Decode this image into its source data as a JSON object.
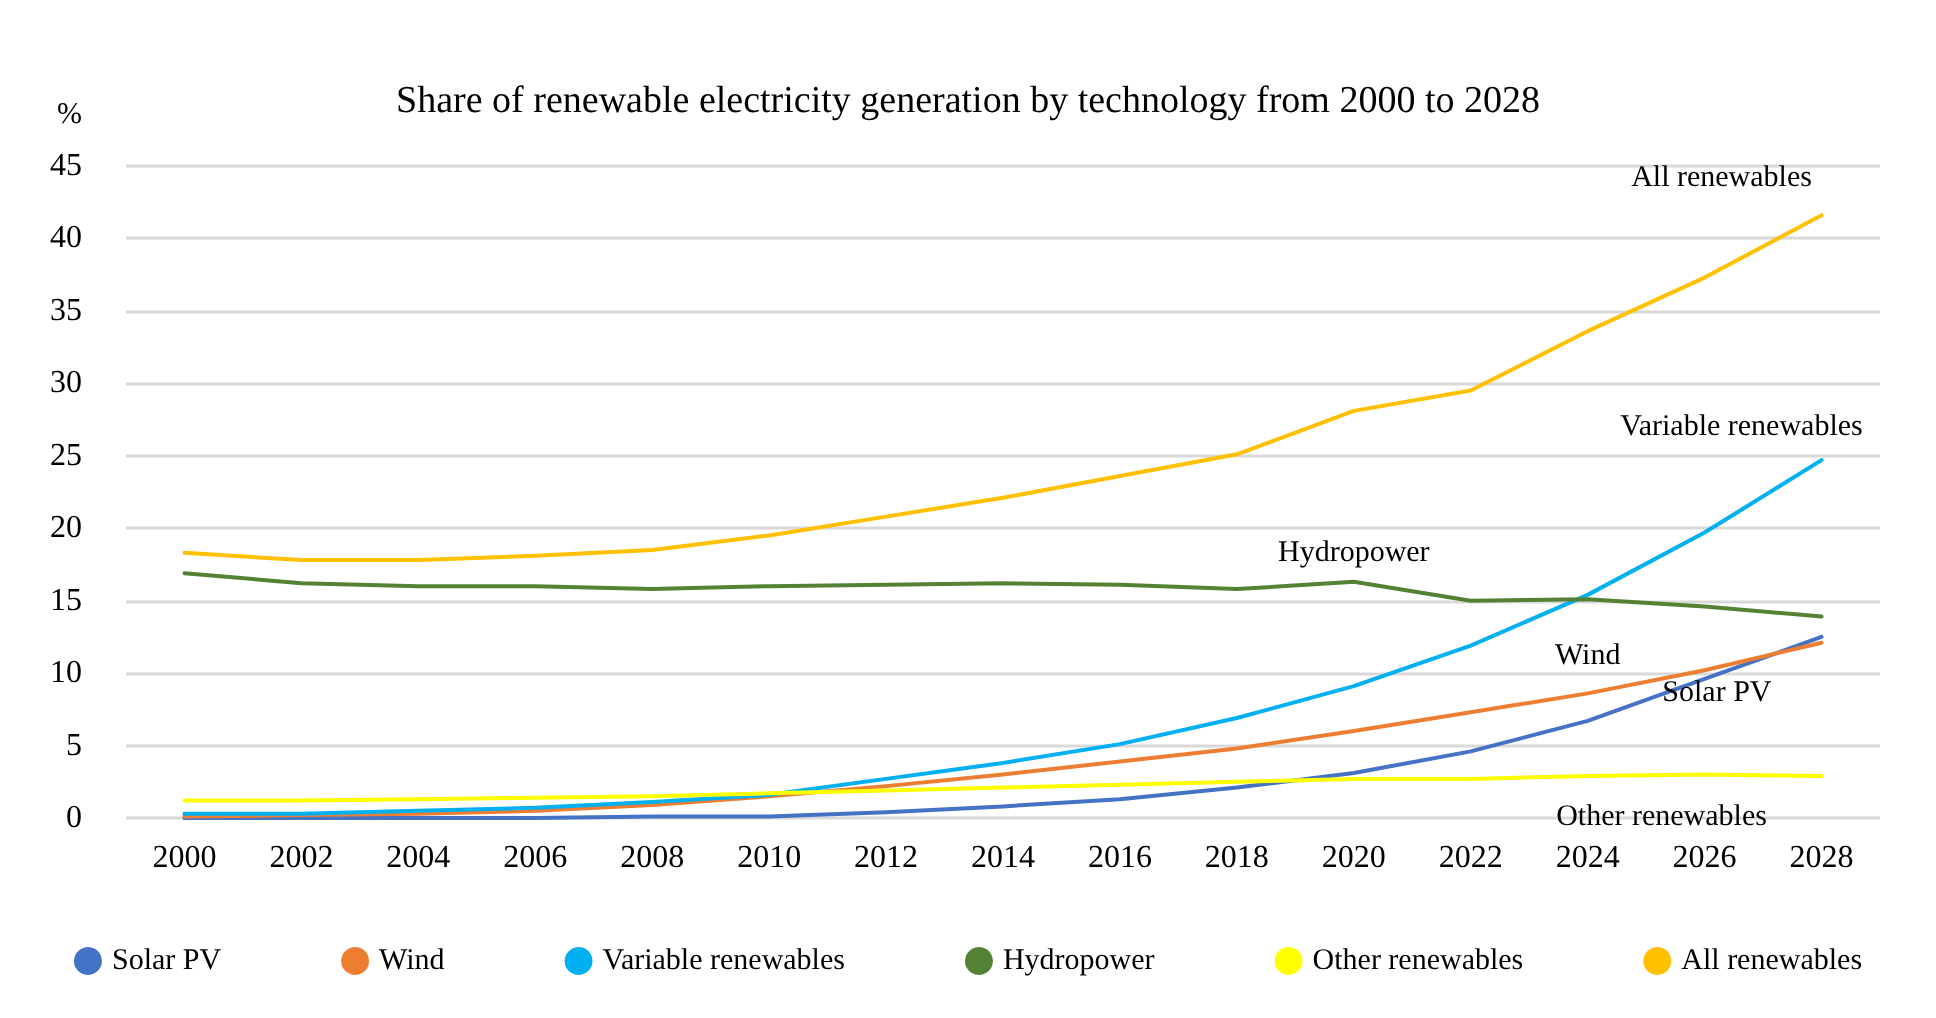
{
  "chart_data": {
    "type": "line",
    "title": "Share of renewable electricity generation by technology from 2000 to 2028",
    "ylabel": "%",
    "categories": [
      "2000",
      "2002",
      "2004",
      "2006",
      "2008",
      "2010",
      "2012",
      "2014",
      "2016",
      "2018",
      "2020",
      "2022",
      "2024",
      "2026",
      "2028"
    ],
    "series": [
      {
        "name": "Solar PV",
        "color": "#4472c4",
        "values": [
          0,
          0,
          0,
          0,
          0.1,
          0.1,
          0.4,
          0.8,
          1.3,
          2.1,
          3.1,
          4.6,
          6.7,
          9.6,
          12.5
        ]
      },
      {
        "name": "Wind",
        "color": "#ed7d31",
        "values": [
          0.1,
          0.2,
          0.3,
          0.5,
          0.9,
          1.5,
          2.2,
          3.0,
          3.9,
          4.8,
          6.0,
          7.3,
          8.6,
          10.2,
          12.1
        ]
      },
      {
        "name": "Variable renewables",
        "color": "#00b0f0",
        "values": [
          0.3,
          0.3,
          0.5,
          0.7,
          1.1,
          1.6,
          2.7,
          3.8,
          5.1,
          6.9,
          9.1,
          11.9,
          15.4,
          19.7,
          24.7
        ]
      },
      {
        "name": "Hydropower",
        "color": "#548235",
        "values": [
          16.9,
          16.2,
          16.0,
          16.0,
          15.8,
          16.0,
          16.1,
          16.2,
          16.1,
          15.8,
          16.3,
          15.0,
          15.1,
          14.6,
          13.9
        ]
      },
      {
        "name": "Other renewables",
        "color": "#ffff00",
        "values": [
          1.2,
          1.2,
          1.3,
          1.4,
          1.5,
          1.7,
          1.9,
          2.1,
          2.3,
          2.5,
          2.7,
          2.7,
          2.9,
          3.0,
          2.9
        ]
      },
      {
        "name": "All renewables",
        "color": "#ffc000",
        "values": [
          18.3,
          17.8,
          17.8,
          18.1,
          18.5,
          19.5,
          20.8,
          22.1,
          23.6,
          25.1,
          28.1,
          29.5,
          33.6,
          37.3,
          41.6
        ]
      }
    ],
    "ylim": [
      0,
      45
    ],
    "yticks": [
      0,
      5,
      10,
      15,
      20,
      25,
      30,
      35,
      40,
      45
    ],
    "grid": "y",
    "legend": "bottom",
    "marker": "none",
    "line_style": "solid"
  }
}
